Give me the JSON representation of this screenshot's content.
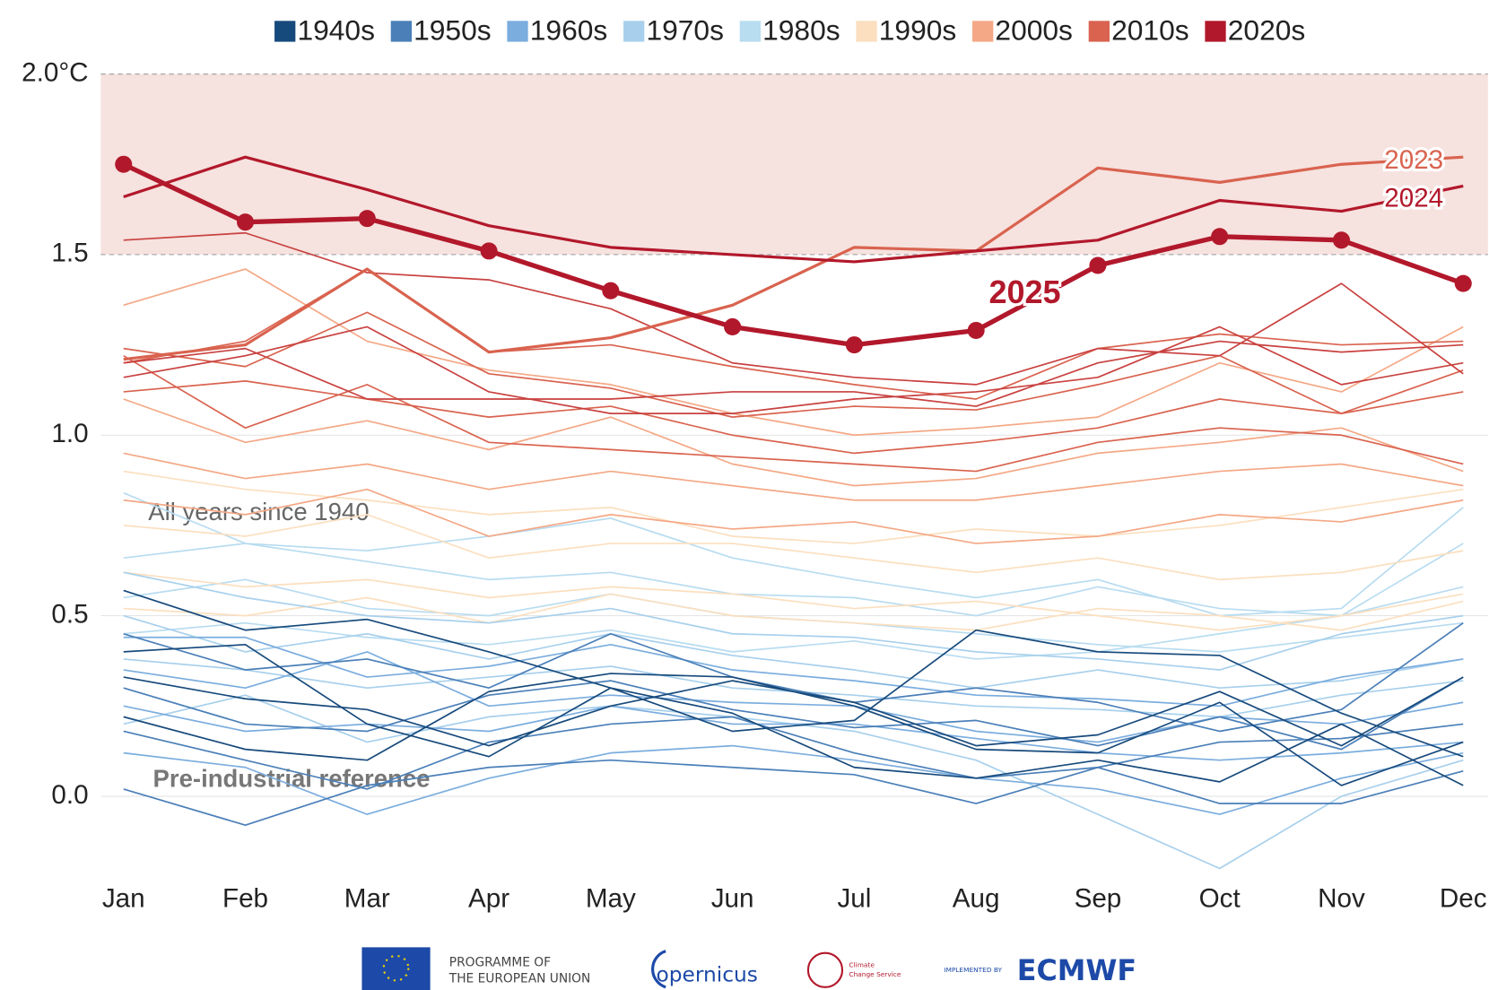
{
  "chart_data": {
    "type": "line",
    "categories": [
      "Jan",
      "Feb",
      "Mar",
      "Apr",
      "May",
      "Jun",
      "Jul",
      "Aug",
      "Sep",
      "Oct",
      "Nov",
      "Dec"
    ],
    "ylim": [
      -0.2,
      2.0
    ],
    "yticks": [
      {
        "value": 2.0,
        "label": "2.0°C"
      },
      1.5,
      {
        "value": 1.0,
        "label": "1.0"
      },
      0.5,
      {
        "value": 0.0,
        "label": "0.0"
      }
    ],
    "grid": true,
    "band": {
      "range": [
        1.5,
        2.0
      ],
      "color": "#f6e2df"
    },
    "legend": [
      {
        "name": "1940s",
        "color": "#174a7c"
      },
      {
        "name": "1950s",
        "color": "#4a7fb8"
      },
      {
        "name": "1960s",
        "color": "#7badde"
      },
      {
        "name": "1970s",
        "color": "#a8d0ec"
      },
      {
        "name": "1980s",
        "color": "#b8dcf0"
      },
      {
        "name": "1990s",
        "color": "#fbdfbf"
      },
      {
        "name": "2000s",
        "color": "#f4a886"
      },
      {
        "name": "2010s",
        "color": "#d9634f"
      },
      {
        "name": "2020s",
        "color": "#b2182b"
      }
    ],
    "series": [
      {
        "color": "#b8dcf0",
        "values": [
          0.66,
          0.7,
          0.68,
          0.72,
          0.77,
          0.66,
          0.6,
          0.55,
          0.6,
          0.5,
          0.52,
          0.8
        ]
      },
      {
        "color": "#b8dcf0",
        "values": [
          0.55,
          0.6,
          0.52,
          0.5,
          0.56,
          0.5,
          0.48,
          0.45,
          0.42,
          0.4,
          0.44,
          0.48
        ]
      },
      {
        "color": "#b8dcf0",
        "values": [
          0.45,
          0.48,
          0.44,
          0.42,
          0.46,
          0.4,
          0.43,
          0.38,
          0.4,
          0.45,
          0.5,
          0.7
        ]
      },
      {
        "color": "#b8dcf0",
        "values": [
          0.84,
          0.7,
          0.65,
          0.6,
          0.62,
          0.56,
          0.55,
          0.5,
          0.58,
          0.52,
          0.5,
          0.58
        ]
      },
      {
        "color": "#fbdfbf",
        "values": [
          0.75,
          0.72,
          0.78,
          0.66,
          0.7,
          0.7,
          0.66,
          0.62,
          0.66,
          0.6,
          0.62,
          0.68
        ]
      },
      {
        "color": "#fbdfbf",
        "values": [
          0.62,
          0.58,
          0.6,
          0.55,
          0.58,
          0.56,
          0.52,
          0.54,
          0.5,
          0.46,
          0.5,
          0.56
        ]
      },
      {
        "color": "#fbdfbf",
        "values": [
          0.9,
          0.85,
          0.82,
          0.78,
          0.8,
          0.72,
          0.7,
          0.74,
          0.72,
          0.75,
          0.8,
          0.85
        ]
      },
      {
        "color": "#fbdfbf",
        "values": [
          0.52,
          0.5,
          0.55,
          0.48,
          0.56,
          0.5,
          0.48,
          0.46,
          0.52,
          0.5,
          0.46,
          0.54
        ]
      },
      {
        "color": "#a8d0ec",
        "values": [
          0.5,
          0.4,
          0.45,
          0.38,
          0.45,
          0.39,
          0.35,
          0.3,
          0.35,
          0.3,
          0.32,
          0.38
        ]
      },
      {
        "color": "#a8d0ec",
        "values": [
          0.2,
          0.28,
          0.15,
          0.22,
          0.25,
          0.22,
          0.18,
          0.1,
          -0.05,
          -0.2,
          0.0,
          0.1
        ]
      },
      {
        "color": "#a8d0ec",
        "values": [
          0.62,
          0.55,
          0.5,
          0.48,
          0.52,
          0.45,
          0.44,
          0.4,
          0.38,
          0.35,
          0.45,
          0.5
        ]
      },
      {
        "color": "#a8d0ec",
        "values": [
          0.38,
          0.35,
          0.3,
          0.33,
          0.36,
          0.3,
          0.28,
          0.25,
          0.24,
          0.22,
          0.28,
          0.32
        ]
      },
      {
        "color": "#7badde",
        "values": [
          0.35,
          0.3,
          0.4,
          0.25,
          0.28,
          0.26,
          0.25,
          0.18,
          0.15,
          0.22,
          0.2,
          0.26
        ]
      },
      {
        "color": "#7badde",
        "values": [
          0.12,
          0.08,
          -0.05,
          0.05,
          0.12,
          0.14,
          0.1,
          0.05,
          0.02,
          -0.05,
          0.05,
          0.12
        ]
      },
      {
        "color": "#7badde",
        "values": [
          0.44,
          0.44,
          0.33,
          0.36,
          0.42,
          0.35,
          0.32,
          0.28,
          0.27,
          0.25,
          0.33,
          0.38
        ]
      },
      {
        "color": "#7badde",
        "values": [
          0.25,
          0.18,
          0.2,
          0.18,
          0.25,
          0.2,
          0.2,
          0.16,
          0.12,
          0.1,
          0.12,
          0.15
        ]
      },
      {
        "color": "#4a7fb8",
        "values": [
          0.02,
          -0.08,
          0.03,
          0.08,
          0.1,
          0.08,
          0.06,
          -0.02,
          0.08,
          -0.02,
          -0.02,
          0.07
        ]
      },
      {
        "color": "#4a7fb8",
        "values": [
          0.3,
          0.2,
          0.18,
          0.28,
          0.32,
          0.24,
          0.19,
          0.21,
          0.14,
          0.22,
          0.13,
          0.33
        ]
      },
      {
        "color": "#4a7fb8",
        "values": [
          0.45,
          0.35,
          0.38,
          0.3,
          0.45,
          0.33,
          0.26,
          0.3,
          0.26,
          0.18,
          0.24,
          0.48
        ]
      },
      {
        "color": "#4a7fb8",
        "values": [
          0.18,
          0.1,
          0.02,
          0.15,
          0.2,
          0.22,
          0.12,
          0.05,
          0.08,
          0.15,
          0.16,
          0.2
        ]
      },
      {
        "color": "#174a7c",
        "values": [
          0.33,
          0.27,
          0.24,
          0.14,
          0.25,
          0.32,
          0.26,
          0.14,
          0.17,
          0.29,
          0.14,
          0.33
        ]
      },
      {
        "color": "#174a7c",
        "values": [
          0.4,
          0.42,
          0.2,
          0.11,
          0.3,
          0.18,
          0.21,
          0.46,
          0.4,
          0.39,
          0.23,
          0.11
        ]
      },
      {
        "color": "#174a7c",
        "values": [
          0.57,
          0.46,
          0.49,
          0.4,
          0.3,
          0.23,
          0.08,
          0.05,
          0.1,
          0.04,
          0.2,
          0.03
        ]
      },
      {
        "color": "#174a7c",
        "values": [
          0.22,
          0.13,
          0.1,
          0.29,
          0.34,
          0.33,
          0.25,
          0.13,
          0.12,
          0.26,
          0.03,
          0.15
        ]
      },
      {
        "color": "#f4a886",
        "values": [
          0.95,
          0.88,
          0.92,
          0.85,
          0.9,
          0.86,
          0.82,
          0.82,
          0.86,
          0.9,
          0.92,
          0.86
        ]
      },
      {
        "color": "#f4a886",
        "values": [
          1.1,
          0.98,
          1.04,
          0.96,
          1.05,
          0.92,
          0.86,
          0.88,
          0.95,
          0.98,
          1.02,
          0.9
        ]
      },
      {
        "color": "#f4a886",
        "values": [
          0.82,
          0.78,
          0.85,
          0.72,
          0.78,
          0.74,
          0.76,
          0.7,
          0.72,
          0.78,
          0.76,
          0.82
        ]
      },
      {
        "color": "#f4a886",
        "values": [
          1.36,
          1.46,
          1.26,
          1.18,
          1.14,
          1.06,
          1.0,
          1.02,
          1.05,
          1.2,
          1.12,
          1.3
        ]
      },
      {
        "color": "#d9634f",
        "values": [
          1.22,
          1.02,
          1.14,
          0.98,
          0.96,
          0.94,
          0.92,
          0.9,
          0.98,
          1.02,
          1.0,
          0.92
        ]
      },
      {
        "color": "#d9634f",
        "values": [
          1.24,
          1.19,
          1.34,
          1.17,
          1.13,
          1.05,
          1.08,
          1.07,
          1.14,
          1.22,
          1.06,
          1.18
        ]
      },
      {
        "color": "#d9634f",
        "values": [
          1.2,
          1.26,
          1.46,
          1.23,
          1.25,
          1.19,
          1.14,
          1.1,
          1.24,
          1.28,
          1.25,
          1.26
        ]
      },
      {
        "color": "#d9634f",
        "values": [
          1.12,
          1.15,
          1.1,
          1.05,
          1.08,
          1.0,
          0.95,
          0.98,
          1.02,
          1.1,
          1.06,
          1.12
        ]
      },
      {
        "color": "#c8413f",
        "values": [
          1.54,
          1.56,
          1.45,
          1.43,
          1.35,
          1.2,
          1.16,
          1.14,
          1.24,
          1.22,
          1.42,
          1.17
        ]
      },
      {
        "color": "#c8413f",
        "values": [
          1.2,
          1.24,
          1.1,
          1.1,
          1.1,
          1.12,
          1.12,
          1.08,
          1.2,
          1.26,
          1.23,
          1.25
        ]
      },
      {
        "color": "#c8413f",
        "values": [
          1.16,
          1.22,
          1.3,
          1.12,
          1.06,
          1.06,
          1.1,
          1.12,
          1.16,
          1.3,
          1.14,
          1.2
        ]
      },
      {
        "name": "2023",
        "color": "#d9634f",
        "values": [
          1.21,
          1.25,
          1.46,
          1.23,
          1.27,
          1.36,
          1.52,
          1.51,
          1.74,
          1.7,
          1.75,
          1.77
        ]
      },
      {
        "name": "2024",
        "color": "#b2182b",
        "values": [
          1.66,
          1.77,
          1.68,
          1.58,
          1.52,
          1.5,
          1.48,
          1.51,
          1.54,
          1.65,
          1.62,
          1.69
        ]
      },
      {
        "name": "2025",
        "color": "#b2182b",
        "markers": true,
        "values": [
          1.75,
          1.59,
          1.6,
          1.51,
          1.4,
          1.3,
          1.25,
          1.29,
          1.47,
          1.55,
          1.54,
          1.42
        ]
      }
    ],
    "annotations": [
      "All years since 1940",
      "Pre-industrial reference"
    ]
  },
  "footer": {
    "eu": [
      "PROGRAMME OF",
      "THE EUROPEAN UNION"
    ],
    "copernicus": "opernicus",
    "c3s": [
      "Climate",
      "Change Service"
    ],
    "implemented": "IMPLEMENTED BY",
    "ecmwf": "ECMWF"
  }
}
